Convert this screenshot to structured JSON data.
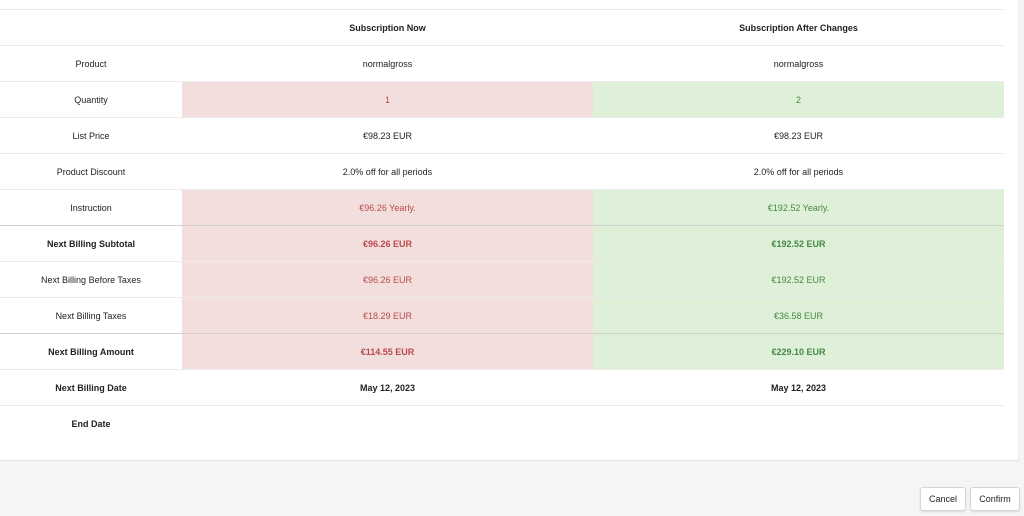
{
  "columns": {
    "now": "Subscription Now",
    "after": "Subscription After Changes"
  },
  "rows": [
    {
      "label": "Product",
      "now": "normalgross",
      "after": "normalgross"
    },
    {
      "label": "Quantity",
      "now": "1",
      "after": "2"
    },
    {
      "label": "List Price",
      "now": "€98.23 EUR",
      "after": "€98.23 EUR"
    },
    {
      "label": "Product Discount",
      "now": "2.0% off for all periods",
      "after": "2.0% off for all periods"
    },
    {
      "label": "Instruction",
      "now": "€96.26 Yearly.",
      "after": "€192.52 Yearly."
    },
    {
      "label": "Next Billing Subtotal",
      "now": "€96.26 EUR",
      "after": "€192.52 EUR"
    },
    {
      "label": "Next Billing Before Taxes",
      "now": "€96.26 EUR",
      "after": "€192.52 EUR"
    },
    {
      "label": "Next Billing Taxes",
      "now": "€18.29 EUR",
      "after": "€36.58 EUR"
    },
    {
      "label": "Next Billing Amount",
      "now": "€114.55 EUR",
      "after": "€229.10 EUR"
    },
    {
      "label": "Next Billing Date",
      "now": "May 12, 2023",
      "after": "May 12, 2023"
    },
    {
      "label": "End Date",
      "now": "",
      "after": ""
    }
  ],
  "colors": {
    "decrease_bg": "#f3dede",
    "decrease_text": "#b94a48",
    "increase_bg": "#dff0d8",
    "increase_text": "#468847"
  },
  "buttons": {
    "cancel": "Cancel",
    "confirm": "Confirm"
  }
}
